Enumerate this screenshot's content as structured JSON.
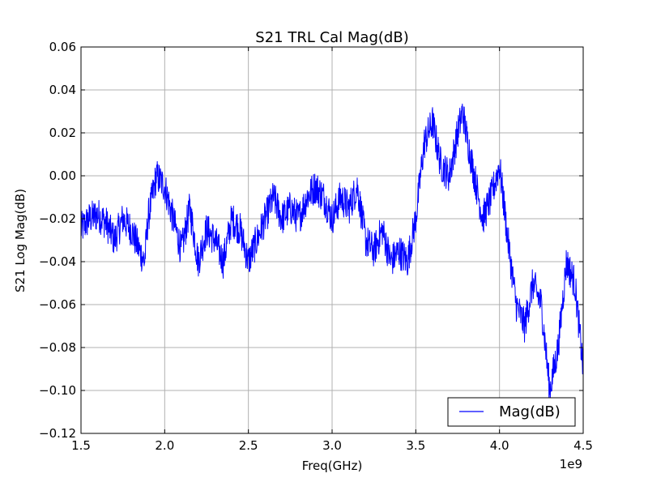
{
  "chart_data": {
    "type": "line",
    "title": "S21 TRL Cal Mag(dB)",
    "xlabel": "Freq(GHz)",
    "ylabel": "S21 Log Mag(dB)",
    "x_offset_label": "1e9",
    "xlim": [
      1.5,
      4.5
    ],
    "ylim": [
      -0.12,
      0.06
    ],
    "x_ticks": [
      "1.5",
      "2.0",
      "2.5",
      "3.0",
      "3.5",
      "4.0",
      "4.5"
    ],
    "y_ticks": [
      "0.06",
      "0.04",
      "0.02",
      "0.00",
      "−0.02",
      "−0.04",
      "−0.06",
      "−0.08",
      "−0.10",
      "−0.12"
    ],
    "grid": true,
    "legend_position": "lower-right",
    "series": [
      {
        "name": "Mag(dB)",
        "color": "#0000ff",
        "x": [
          1.5,
          1.55,
          1.6,
          1.65,
          1.7,
          1.75,
          1.8,
          1.85,
          1.88,
          1.9,
          1.95,
          2.0,
          2.05,
          2.1,
          2.15,
          2.2,
          2.25,
          2.3,
          2.35,
          2.4,
          2.45,
          2.5,
          2.55,
          2.6,
          2.65,
          2.7,
          2.75,
          2.8,
          2.85,
          2.9,
          2.95,
          3.0,
          3.05,
          3.1,
          3.15,
          3.2,
          3.25,
          3.3,
          3.35,
          3.4,
          3.45,
          3.5,
          3.55,
          3.6,
          3.65,
          3.7,
          3.75,
          3.78,
          3.8,
          3.85,
          3.9,
          3.95,
          4.0,
          4.05,
          4.1,
          4.15,
          4.2,
          4.25,
          4.3,
          4.35,
          4.4,
          4.45,
          4.5
        ],
        "y": [
          -0.025,
          -0.02,
          -0.018,
          -0.022,
          -0.03,
          -0.02,
          -0.025,
          -0.035,
          -0.04,
          -0.02,
          0.0,
          -0.005,
          -0.02,
          -0.035,
          -0.015,
          -0.04,
          -0.025,
          -0.03,
          -0.04,
          -0.02,
          -0.025,
          -0.04,
          -0.03,
          -0.02,
          -0.01,
          -0.02,
          -0.015,
          -0.02,
          -0.01,
          -0.005,
          -0.01,
          -0.02,
          -0.01,
          -0.015,
          -0.005,
          -0.03,
          -0.035,
          -0.025,
          -0.04,
          -0.035,
          -0.04,
          -0.02,
          0.015,
          0.025,
          0.005,
          0.0,
          0.02,
          0.03,
          0.02,
          0.0,
          -0.02,
          -0.01,
          0.005,
          -0.03,
          -0.06,
          -0.07,
          -0.05,
          -0.06,
          -0.1,
          -0.08,
          -0.04,
          -0.05,
          -0.09
        ]
      }
    ]
  }
}
